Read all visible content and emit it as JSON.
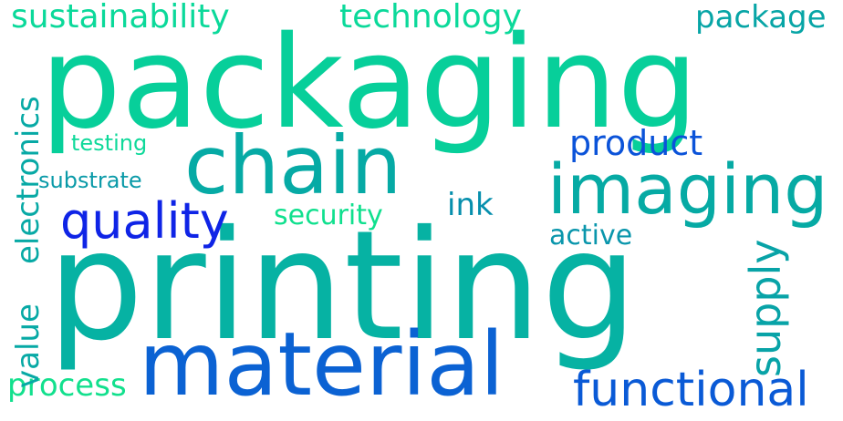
{
  "cloud": {
    "background": "#ffffff",
    "words": [
      {
        "text": "packaging",
        "color": "#07cf9a",
        "orientation": "horizontal"
      },
      {
        "text": "printing",
        "color": "#06b2a3",
        "orientation": "horizontal"
      },
      {
        "text": "material",
        "color": "#0b62d3",
        "orientation": "horizontal"
      },
      {
        "text": "chain",
        "color": "#06aaa5",
        "orientation": "horizontal"
      },
      {
        "text": "imaging",
        "color": "#06aaa4",
        "orientation": "horizontal"
      },
      {
        "text": "quality",
        "color": "#0f24e6",
        "orientation": "horizontal"
      },
      {
        "text": "functional",
        "color": "#0a5ad6",
        "orientation": "horizontal"
      },
      {
        "text": "product",
        "color": "#0b53d9",
        "orientation": "horizontal"
      },
      {
        "text": "sustainability",
        "color": "#0bd99a",
        "orientation": "horizontal"
      },
      {
        "text": "technology",
        "color": "#0bd99a",
        "orientation": "horizontal"
      },
      {
        "text": "package",
        "color": "#07a5a6",
        "orientation": "horizontal"
      },
      {
        "text": "ink",
        "color": "#068fad",
        "orientation": "horizontal"
      },
      {
        "text": "security",
        "color": "#10e08e",
        "orientation": "horizontal"
      },
      {
        "text": "active",
        "color": "#0a96ac",
        "orientation": "horizontal"
      },
      {
        "text": "testing",
        "color": "#0fd99a",
        "orientation": "horizontal"
      },
      {
        "text": "substrate",
        "color": "#0a9aa8",
        "orientation": "horizontal"
      },
      {
        "text": "process",
        "color": "#12e08d",
        "orientation": "horizontal"
      },
      {
        "text": "electronics",
        "color": "#07a9a5",
        "orientation": "vertical"
      },
      {
        "text": "value",
        "color": "#07a9a5",
        "orientation": "vertical"
      },
      {
        "text": "supply",
        "color": "#08a3a7",
        "orientation": "vertical"
      }
    ]
  }
}
